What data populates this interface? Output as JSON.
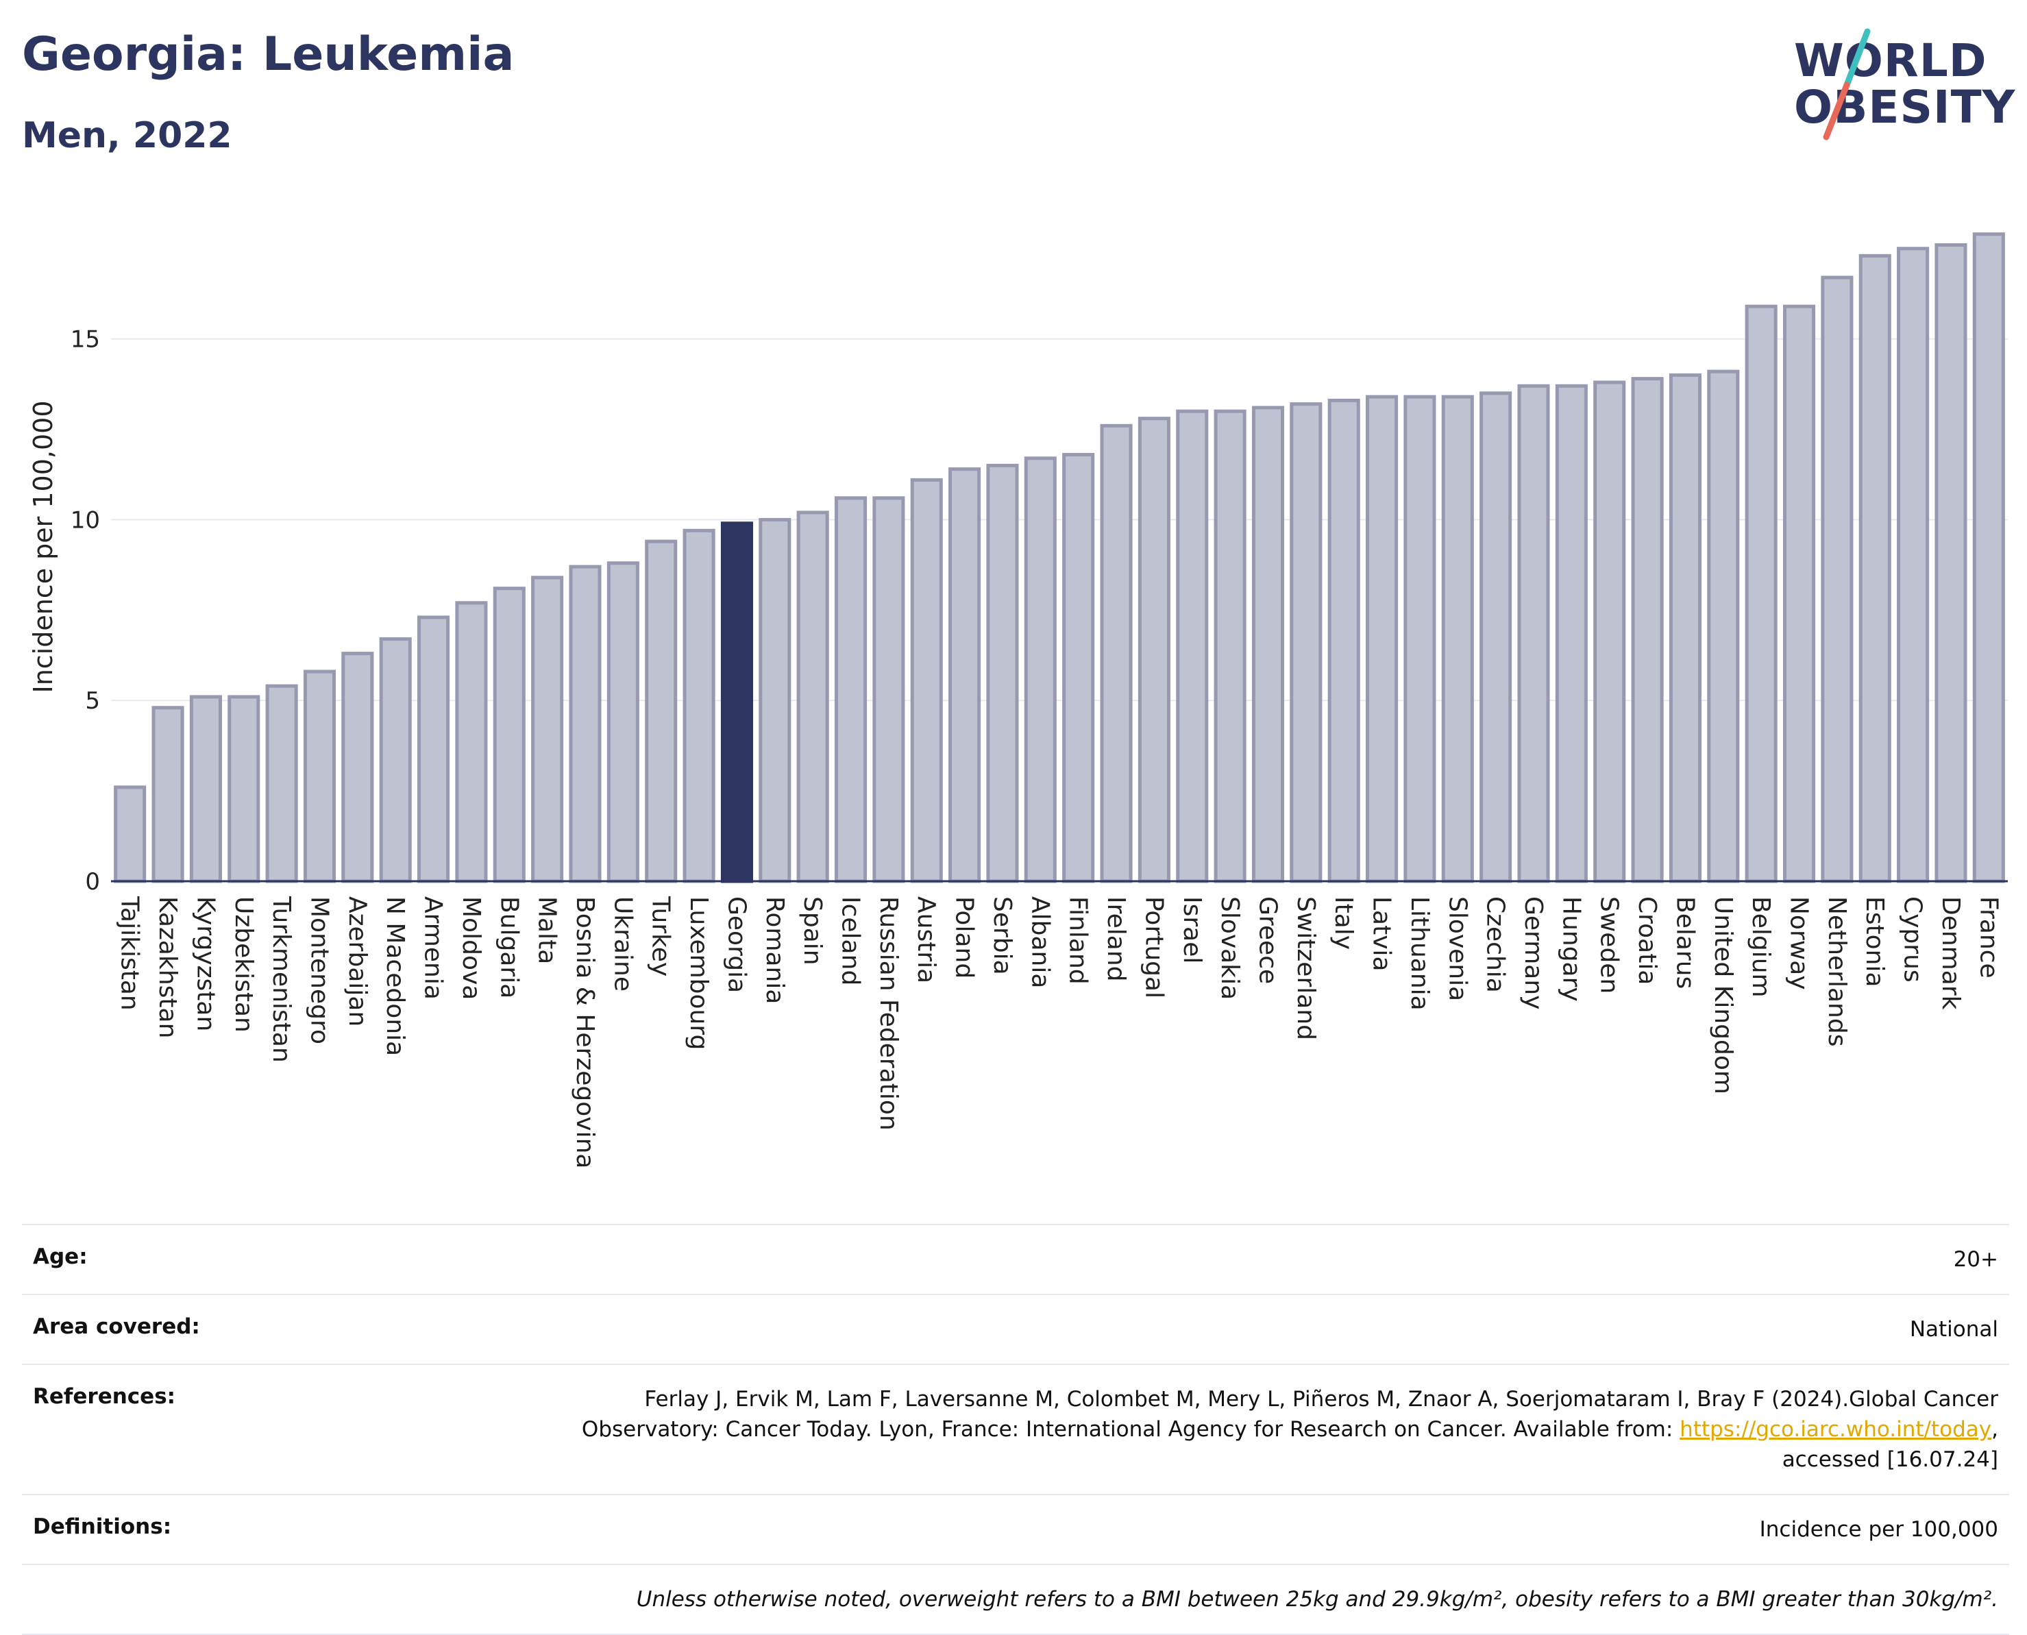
{
  "header": {
    "title": "Georgia: Leukemia",
    "subtitle": "Men, 2022"
  },
  "logo": {
    "line1": "WORLD",
    "line2": "OBESITY",
    "slash_colors": [
      "#3fbfbf",
      "#e8685a"
    ]
  },
  "colors": {
    "bar": "#bfc2d1",
    "bar_border": "#9699b0",
    "highlight": "#2c3560",
    "grid": "#e8eaf0",
    "axis": "#2c3560"
  },
  "chart_data": {
    "type": "bar",
    "ylabel": "Incidence per 100,000",
    "ylim": [
      0,
      18.5
    ],
    "yticks": [
      0,
      5,
      10,
      15
    ],
    "highlight": "Georgia",
    "categories": [
      "Tajikistan",
      "Kazakhstan",
      "Kyrgyzstan",
      "Uzbekistan",
      "Turkmenistan",
      "Montenegro",
      "Azerbaijan",
      "N Macedonia",
      "Armenia",
      "Moldova",
      "Bulgaria",
      "Malta",
      "Bosnia & Herzegovina",
      "Ukraine",
      "Turkey",
      "Luxembourg",
      "Georgia",
      "Romania",
      "Spain",
      "Iceland",
      "Russian Federation",
      "Austria",
      "Poland",
      "Serbia",
      "Albania",
      "Finland",
      "Ireland",
      "Portugal",
      "Israel",
      "Slovakia",
      "Greece",
      "Switzerland",
      "Italy",
      "Latvia",
      "Lithuania",
      "Slovenia",
      "Czechia",
      "Germany",
      "Hungary",
      "Sweden",
      "Croatia",
      "Belarus",
      "United Kingdom",
      "Belgium",
      "Norway",
      "Netherlands",
      "Estonia",
      "Cyprus",
      "Denmark",
      "France"
    ],
    "values": [
      2.6,
      4.8,
      5.1,
      5.1,
      5.4,
      5.8,
      6.3,
      6.7,
      7.3,
      7.7,
      8.1,
      8.4,
      8.7,
      8.8,
      9.4,
      9.7,
      9.9,
      10.0,
      10.2,
      10.6,
      10.6,
      11.1,
      11.4,
      11.5,
      11.7,
      11.8,
      12.6,
      12.8,
      13.0,
      13.0,
      13.1,
      13.2,
      13.3,
      13.4,
      13.4,
      13.4,
      13.5,
      13.7,
      13.7,
      13.8,
      13.9,
      14.0,
      14.1,
      15.9,
      15.9,
      16.7,
      17.3,
      17.5,
      17.6,
      17.9
    ]
  },
  "meta": {
    "age_label": "Age:",
    "age_value": "20+",
    "area_label": "Area covered:",
    "area_value": "National",
    "references_label": "References:",
    "references_text_1": "Ferlay J, Ervik M, Lam F, Laversanne M, Colombet M, Mery L, Piñeros M, Znaor A, Soerjomataram I, Bray F (2024).Global Cancer",
    "references_text_2": "Observatory: Cancer Today. Lyon, France: International Agency for Research on Cancer. Available from: ",
    "references_link": "https://gco.iarc.who.int/today",
    "references_text_3": "accessed [16.07.24]",
    "definitions_label": "Definitions:",
    "definitions_value": "Incidence per 100,000",
    "note": "Unless otherwise noted, overweight refers to a BMI between 25kg and 29.9kg/m², obesity refers to a BMI greater than 30kg/m²."
  }
}
